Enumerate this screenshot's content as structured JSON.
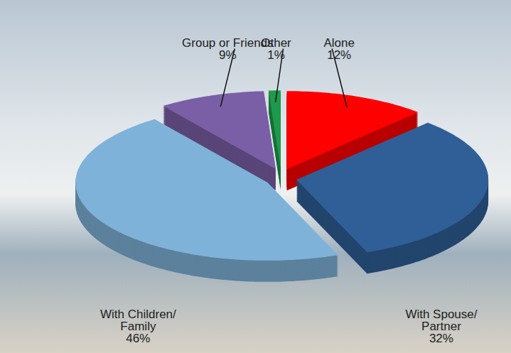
{
  "chart_data": {
    "type": "pie",
    "categories": [
      "Alone",
      "With Spouse/Partner",
      "With Children/Family",
      "Group or Friends",
      "Other"
    ],
    "values": [
      12,
      32,
      46,
      9,
      1
    ],
    "value_labels": [
      "12%",
      "32%",
      "46%",
      "9%",
      "1%"
    ],
    "colors": [
      "#ff0000",
      "#2f5f96",
      "#7fb2d9",
      "#7a5fa6",
      "#1e9a4c"
    ],
    "data_labels": true,
    "tick_labels": false
  }
}
